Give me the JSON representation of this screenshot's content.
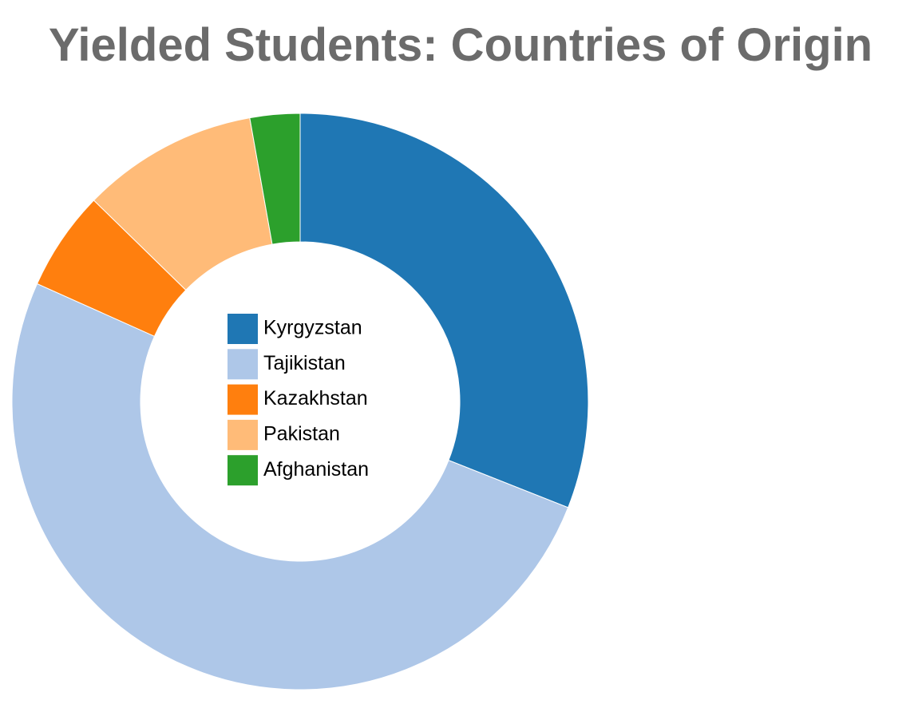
{
  "chart_data": {
    "type": "donut",
    "title": "Yielded Students: Countries of Origin",
    "categories": [
      "Kyrgyzstan",
      "Tajikistan",
      "Kazakhstan",
      "Pakistan",
      "Afghanistan"
    ],
    "values": [
      31,
      50.7,
      5.6,
      9.9,
      2.8
    ],
    "colors": [
      "#1f77b4",
      "#aec7e8",
      "#ff7f0e",
      "#ffbb78",
      "#2ca02c"
    ]
  }
}
